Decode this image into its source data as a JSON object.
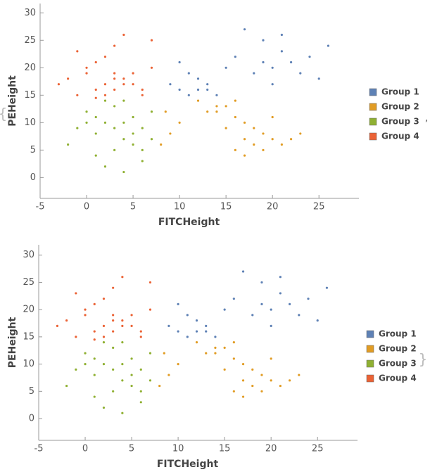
{
  "wrapper": {
    "open": "{",
    "separator": ",",
    "close": "}"
  },
  "chart_data": [
    {
      "type": "scatter",
      "xlabel": "FITCHeight",
      "ylabel": "PEHeight",
      "xlim": [
        -5,
        29.3
      ],
      "ylim": [
        -3.8,
        31.7
      ],
      "xticks": [
        -5,
        0,
        5,
        10,
        15,
        20,
        25
      ],
      "yticks": [
        0,
        5,
        10,
        15,
        20,
        25,
        30
      ],
      "legend": "right",
      "series": [
        {
          "name": "Group 1",
          "color": "#5e81b5",
          "x": [
            9,
            10,
            11,
            12,
            13,
            14,
            12,
            11,
            10,
            15,
            16,
            18,
            19,
            20,
            21,
            22,
            20,
            19,
            23,
            24,
            17,
            25,
            26,
            13,
            21
          ],
          "values": [
            17,
            16,
            15,
            16,
            17,
            15,
            18,
            19,
            21,
            20,
            22,
            19,
            21,
            20,
            23,
            21,
            17,
            25,
            19,
            22,
            27,
            18,
            24,
            16,
            26
          ]
        },
        {
          "name": "Group 2",
          "color": "#e19c24",
          "x": [
            8,
            9,
            10,
            14,
            15,
            16,
            17,
            18,
            19,
            20,
            21,
            16,
            15,
            14,
            17,
            18,
            22,
            23,
            13,
            12,
            19,
            8.5,
            17,
            20,
            16
          ],
          "values": [
            6,
            8,
            10,
            12,
            13,
            11,
            7,
            6,
            8,
            7,
            6,
            5,
            9,
            13,
            4,
            9,
            7,
            8,
            12,
            14,
            5,
            12,
            10,
            11,
            14
          ]
        },
        {
          "name": "Group 3",
          "color": "#8fb032",
          "x": [
            -2,
            -1,
            0,
            1,
            2,
            3,
            4,
            5,
            6,
            7,
            3,
            4,
            5,
            6,
            2,
            1,
            0,
            5,
            6,
            7,
            3,
            4,
            2,
            1,
            4
          ],
          "values": [
            6,
            9,
            12,
            8,
            10,
            5,
            7,
            8,
            9,
            7,
            13,
            14,
            11,
            3,
            2,
            4,
            10,
            6,
            5,
            12,
            9,
            1,
            14,
            11,
            10
          ]
        },
        {
          "name": "Group 4",
          "color": "#eb6235",
          "x": [
            -3,
            -2,
            -1,
            0,
            1,
            2,
            3,
            4,
            5,
            6,
            7,
            2,
            3,
            4,
            1,
            0,
            5,
            6,
            2,
            3,
            4,
            -1,
            1,
            7,
            3
          ],
          "values": [
            17,
            18,
            15,
            19,
            16,
            17,
            16,
            18,
            17,
            15,
            20,
            22,
            24,
            26,
            21,
            20,
            19,
            16,
            15,
            18,
            17,
            23,
            14.5,
            25,
            19
          ]
        }
      ]
    },
    {
      "type": "scatter",
      "xlabel": "FITCHeight",
      "ylabel": "PEHeight",
      "xlim": [
        -5,
        29.3
      ],
      "ylim": [
        -4,
        31.9
      ],
      "xticks": [
        -5,
        0,
        5,
        10,
        15,
        20,
        25
      ],
      "yticks": [
        0,
        5,
        10,
        15,
        20,
        25,
        30
      ],
      "legend": "right",
      "series": [
        {
          "name": "Group 1",
          "color": "#5e81b5",
          "x": [
            9,
            10,
            11,
            12,
            13,
            14,
            12,
            11,
            10,
            15,
            16,
            18,
            19,
            20,
            21,
            22,
            20,
            19,
            23,
            24,
            17,
            25,
            26,
            13,
            21
          ],
          "values": [
            17,
            16,
            15,
            16,
            17,
            15,
            18,
            19,
            21,
            20,
            22,
            19,
            21,
            20,
            23,
            21,
            17,
            25,
            19,
            22,
            27,
            18,
            24,
            16,
            26
          ]
        },
        {
          "name": "Group 2",
          "color": "#e19c24",
          "x": [
            8,
            9,
            10,
            14,
            15,
            16,
            17,
            18,
            19,
            20,
            21,
            16,
            15,
            14,
            17,
            18,
            22,
            23,
            13,
            12,
            19,
            8.5,
            17,
            20,
            16
          ],
          "values": [
            6,
            8,
            10,
            12,
            13,
            11,
            7,
            6,
            8,
            7,
            6,
            5,
            9,
            13,
            4,
            9,
            7,
            8,
            12,
            14,
            5,
            12,
            10,
            11,
            14
          ]
        },
        {
          "name": "Group 3",
          "color": "#8fb032",
          "x": [
            -2,
            -1,
            0,
            1,
            2,
            3,
            4,
            5,
            6,
            7,
            3,
            4,
            5,
            6,
            2,
            1,
            0,
            5,
            6,
            7,
            3,
            4,
            2,
            1,
            4
          ],
          "values": [
            6,
            9,
            12,
            8,
            10,
            5,
            7,
            8,
            9,
            7,
            13,
            14,
            11,
            3,
            2,
            4,
            10,
            6,
            5,
            12,
            9,
            1,
            14,
            11,
            10
          ]
        },
        {
          "name": "Group 4",
          "color": "#eb6235",
          "x": [
            -3,
            -2,
            -1,
            0,
            1,
            2,
            3,
            4,
            5,
            6,
            7,
            2,
            3,
            4,
            1,
            0,
            5,
            6,
            2,
            3,
            4,
            -1,
            1,
            7,
            3
          ],
          "values": [
            17,
            18,
            15,
            19,
            16,
            17,
            16,
            18,
            17,
            15,
            20,
            22,
            24,
            26,
            21,
            20,
            19,
            16,
            15,
            18,
            17,
            23,
            14.5,
            25,
            19
          ]
        }
      ]
    }
  ]
}
